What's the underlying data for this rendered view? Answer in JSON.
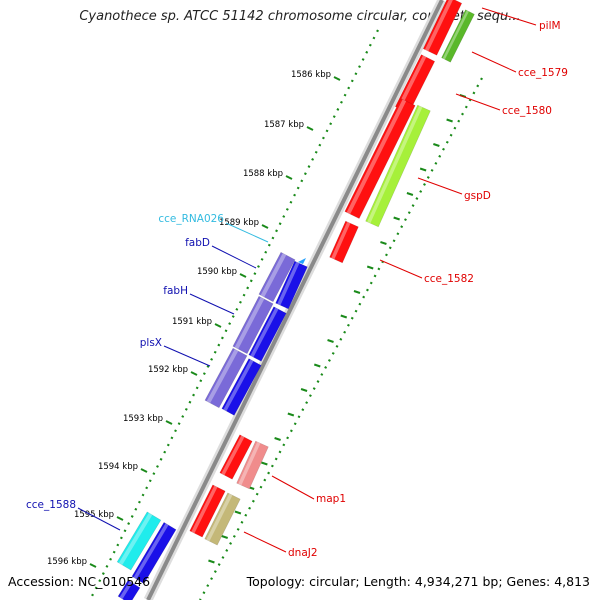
{
  "title": "Cyanothece sp. ATCC 51142 chromosome circular, complete sequ...",
  "footer": {
    "accession": "Accession: NC_010546",
    "topology": "Topology: circular; Length: 4,934,271 bp; Genes: 4,813"
  },
  "ticks": [
    "1586 kbp",
    "1587 kbp",
    "1588 kbp",
    "1589 kbp",
    "1590 kbp",
    "1591 kbp",
    "1592 kbp",
    "1593 kbp",
    "1594 kbp",
    "1595 kbp",
    "1596 kbp"
  ],
  "gene_labels": [
    {
      "text": "pilM",
      "color": "#e00000"
    },
    {
      "text": "cce_1579",
      "color": "#e00000"
    },
    {
      "text": "cce_1580",
      "color": "#e00000"
    },
    {
      "text": "gspD",
      "color": "#e00000"
    },
    {
      "text": "cce_1582",
      "color": "#e00000"
    },
    {
      "text": "cce_RNA026",
      "color": "#33bbe0"
    },
    {
      "text": "fabD",
      "color": "#1010b0"
    },
    {
      "text": "fabH",
      "color": "#1010b0"
    },
    {
      "text": "plsX",
      "color": "#1010b0"
    },
    {
      "text": "map1",
      "color": "#e00000"
    },
    {
      "text": "dnaJ2",
      "color": "#e00000"
    },
    {
      "text": "cce_1588",
      "color": "#1010b0"
    }
  ],
  "colors": {
    "forward_cds": "#ff1010",
    "forward_feature": "#a6f03a",
    "reverse_cds": "#1a10e8",
    "reverse_feature": "#7a6ad8",
    "rna": "#20ecec",
    "pink_feature": "#f08c8c",
    "olive_feature": "#c4b878",
    "backbone": "#999999",
    "tick_marks": "#1a8a1a"
  }
}
